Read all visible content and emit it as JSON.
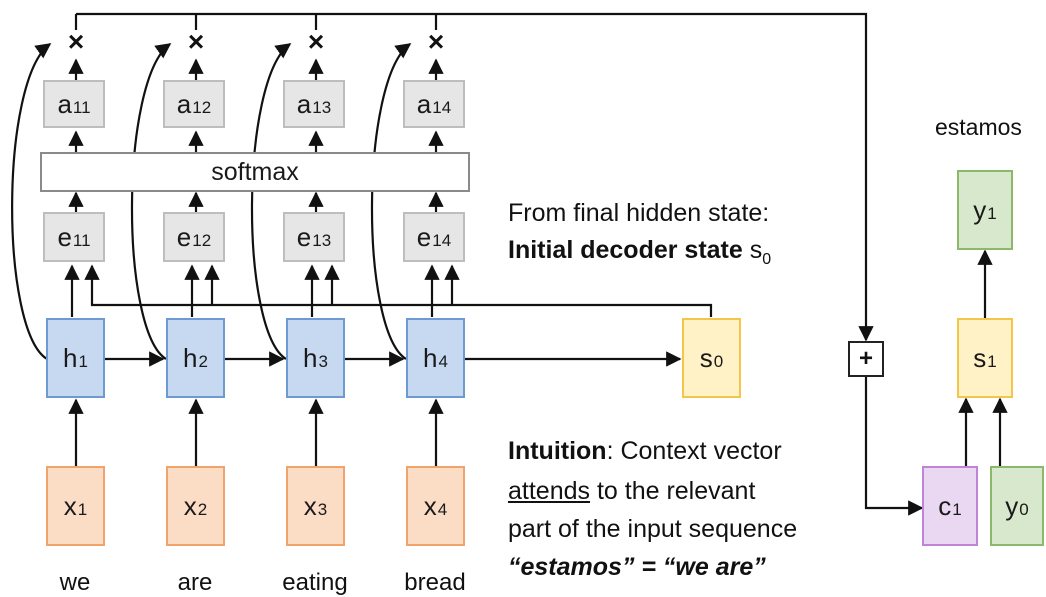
{
  "encoder": {
    "hidden": [
      {
        "label": "h",
        "sub": "1"
      },
      {
        "label": "h",
        "sub": "2"
      },
      {
        "label": "h",
        "sub": "3"
      },
      {
        "label": "h",
        "sub": "4"
      }
    ],
    "inputs": [
      {
        "label": "x",
        "sub": "1"
      },
      {
        "label": "x",
        "sub": "2"
      },
      {
        "label": "x",
        "sub": "3"
      },
      {
        "label": "x",
        "sub": "4"
      }
    ],
    "words": [
      "we",
      "are",
      "eating",
      "bread"
    ]
  },
  "scores": [
    {
      "label": "e",
      "sub": "11"
    },
    {
      "label": "e",
      "sub": "12"
    },
    {
      "label": "e",
      "sub": "13"
    },
    {
      "label": "e",
      "sub": "14"
    }
  ],
  "weights": [
    {
      "label": "a",
      "sub": "11"
    },
    {
      "label": "a",
      "sub": "12"
    },
    {
      "label": "a",
      "sub": "13"
    },
    {
      "label": "a",
      "sub": "14"
    }
  ],
  "softmax_label": "softmax",
  "multiply_symbol": "×",
  "plus_symbol": "+",
  "decoder": {
    "s0": {
      "label": "s",
      "sub": "0"
    },
    "s1": {
      "label": "s",
      "sub": "1"
    },
    "y1": {
      "label": "y",
      "sub": "1"
    },
    "y0": {
      "label": "y",
      "sub": "0"
    },
    "c1": {
      "label": "c",
      "sub": "1"
    },
    "output_word": "estamos"
  },
  "annotation": {
    "line1": "From final hidden state:",
    "line2_bold": "Initial decoder state",
    "line2_sym": "s",
    "line2_sub": "0"
  },
  "intuition": {
    "bold": "Intuition",
    "rest1": ": Context vector",
    "underlined": "attends",
    "rest2": " to the relevant",
    "line3": "part of the input sequence",
    "line4": "“estamos” = “we are”"
  },
  "colors": {
    "gray": "#e6e6e6",
    "blue": "#c6d9f1",
    "orange": "#fbdcc5",
    "yellow": "#fff2c6",
    "green": "#d7e8cc",
    "purple": "#ead7f2"
  }
}
